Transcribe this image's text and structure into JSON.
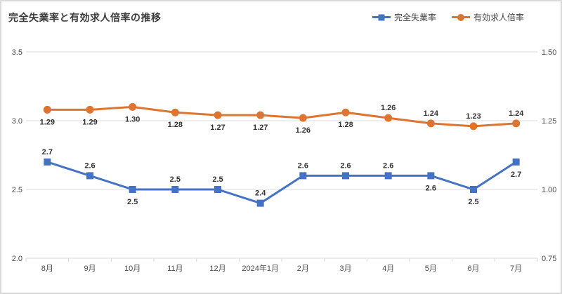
{
  "title": "完全失業率と有効求人倍率の推移",
  "legend": [
    {
      "label": "完全失業率",
      "color": "#4472C4",
      "marker": "square"
    },
    {
      "label": "有効求人倍率",
      "color": "#DD7531",
      "marker": "circle"
    }
  ],
  "colors": {
    "unemployment_blue": "#4472C4",
    "job_ratio_orange": "#DD7531",
    "gridline": "#d9d9d9",
    "axis_text": "#4a4a4a",
    "data_label": "#333333"
  },
  "chart_data": {
    "type": "line",
    "categories": [
      "8月",
      "9月",
      "10月",
      "11月",
      "12月",
      "2024年1月",
      "2月",
      "3月",
      "4月",
      "5月",
      "6月",
      "7月"
    ],
    "series": [
      {
        "name": "完全失業率",
        "axis": "left",
        "color": "#4472C4",
        "marker": "square",
        "values": [
          2.7,
          2.6,
          2.5,
          2.5,
          2.5,
          2.4,
          2.6,
          2.6,
          2.6,
          2.6,
          2.5,
          2.7
        ],
        "labels": [
          "2.7",
          "2.6",
          "2.5",
          "2.5",
          "2.5",
          "2.4",
          "2.6",
          "2.6",
          "2.6",
          "2.6",
          "2.5",
          "2.7"
        ],
        "label_positions": [
          "above",
          "above",
          "below",
          "above",
          "above",
          "above",
          "above",
          "above",
          "above",
          "below",
          "below",
          "below"
        ]
      },
      {
        "name": "有効求人倍率",
        "axis": "right",
        "color": "#DD7531",
        "marker": "circle",
        "values": [
          1.29,
          1.29,
          1.3,
          1.28,
          1.27,
          1.27,
          1.26,
          1.28,
          1.26,
          1.24,
          1.23,
          1.24
        ],
        "labels": [
          "1.29",
          "1.29",
          "1.30",
          "1.28",
          "1.27",
          "1.27",
          "1.26",
          "1.28",
          "1.26",
          "1.24",
          "1.23",
          "1.24"
        ],
        "label_positions": [
          "below",
          "below",
          "below",
          "below",
          "below",
          "below",
          "below",
          "below",
          "above",
          "above",
          "above",
          "above"
        ]
      }
    ],
    "left_axis": {
      "min": 2.0,
      "max": 3.5,
      "ticks": [
        "3.5",
        "3.0",
        "2.5",
        "2.0"
      ]
    },
    "right_axis": {
      "min": 0.75,
      "max": 1.5,
      "ticks": [
        "1.50",
        "1.25",
        "1.00",
        "0.75"
      ]
    },
    "grid": true,
    "legend_position": "top-right"
  }
}
